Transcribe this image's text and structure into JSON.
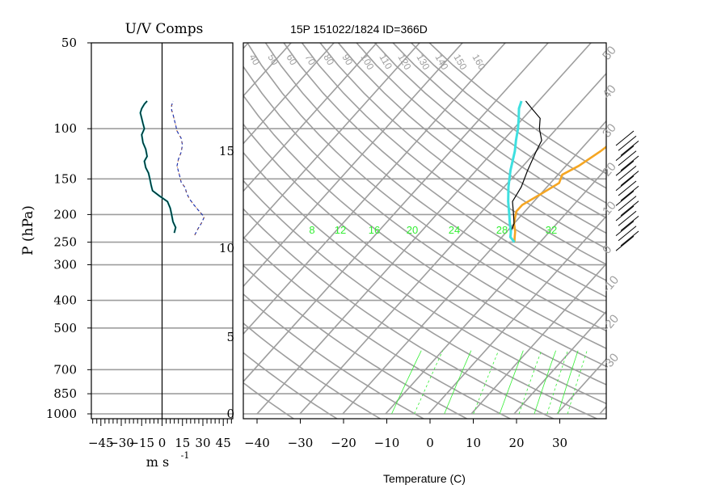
{
  "header": {
    "left_title": "U/V Comps",
    "main_title": "15P 151022/1824 ID=366D"
  },
  "colors": {
    "grid": "#9e9e9e",
    "temperature": "#f5a623",
    "dewpoint": "#000000",
    "parcel": "#3ee0e0",
    "mixing_ratio": "#33ee33",
    "wind_u": "#000000",
    "wind_v": "#00a0a0"
  },
  "chart_data": [
    {
      "type": "line",
      "name": "U/V Comps",
      "title": "U/V Comps",
      "xlabel": "m s",
      "xlabel_superscript": "-1",
      "ylabel": "P (hPa)",
      "xlim": [
        -52,
        52
      ],
      "ylim": [
        1000,
        50
      ],
      "y_scale": "log",
      "x_ticks": [
        -45,
        -30,
        -15,
        0,
        15,
        30,
        45
      ],
      "x_tick_labels": [
        "−45",
        "−30",
        "−15",
        "0",
        "15",
        "30",
        "45"
      ],
      "y_ticks": [
        50,
        100,
        150,
        200,
        250,
        300,
        400,
        500,
        700,
        850,
        1000
      ],
      "y_tick_labels": [
        "50",
        "100",
        "150",
        "200",
        "250",
        "300",
        "400",
        "500",
        "700",
        "850",
        "1000"
      ],
      "series": [
        {
          "style": "wiggly",
          "p": [
            232,
            222,
            212,
            200,
            190,
            180,
            172,
            165,
            158,
            150,
            143,
            137,
            130,
            125,
            118,
            112,
            105,
            100,
            96,
            92,
            88,
            85,
            82,
            80
          ],
          "values": [
            9,
            10,
            8,
            7,
            6,
            4,
            -2,
            -7,
            -8,
            -9,
            -10,
            -12,
            -13,
            -11,
            -12,
            -14,
            -15,
            -13,
            -14,
            -15,
            -16,
            -15,
            -13,
            -11
          ]
        },
        {
          "style": "dashed",
          "p": [
            236,
            226,
            214,
            204,
            194,
            184,
            176,
            168,
            161,
            154,
            147,
            141,
            135,
            128,
            121,
            114,
            108,
            102,
            97,
            93,
            89,
            86,
            83,
            80
          ],
          "values": [
            24,
            26,
            29,
            31,
            27,
            23,
            20,
            18,
            17,
            14,
            13,
            12,
            11,
            12,
            14,
            15,
            14,
            11,
            10,
            9,
            8,
            7,
            7,
            8
          ]
        }
      ]
    },
    {
      "type": "line",
      "name": "skew-T",
      "title": "15P 151022/1824 ID=366D",
      "xlabel": "Temperature (C)",
      "xlim": [
        -40,
        40
      ],
      "ylim": [
        1000,
        50
      ],
      "y_scale": "log",
      "x_ticks": [
        -40,
        -30,
        -20,
        -10,
        0,
        10,
        20,
        30
      ],
      "x_tick_labels": [
        "−40",
        "−30",
        "−20",
        "−10",
        "0",
        "10",
        "20",
        "30"
      ],
      "height_axis_ticks": [
        0,
        5,
        10,
        15
      ],
      "height_axis_tick_labels": [
        "0",
        "5",
        "10",
        "15"
      ],
      "theta_labels": [
        "40",
        "50",
        "60",
        "70",
        "80",
        "90",
        "100",
        "110",
        "120",
        "130",
        "140",
        "150",
        "160"
      ],
      "mixing_ratio_labels": [
        "8",
        "12",
        "16",
        "20",
        "24",
        "28",
        "32"
      ],
      "dry_adiabat_labels_right": [
        "50",
        "40",
        "30",
        "20",
        "10",
        "0",
        "-10",
        "-20",
        "-30"
      ],
      "series": [
        {
          "name": "temperature",
          "p": [
            250,
            240,
            230,
            215,
            205,
            195,
            185,
            170,
            155,
            145,
            135,
            120,
            110,
            100,
            95,
            90,
            85,
            80
          ],
          "values": [
            -16,
            -17,
            -18,
            -20,
            -21,
            -22,
            -22,
            -20,
            -18,
            -19,
            -17,
            -15,
            -14,
            -14,
            -15,
            -19,
            -22,
            -24
          ]
        },
        {
          "name": "dewpoint",
          "p": [
            250,
            240,
            230,
            215,
            200,
            180,
            160,
            140,
            120,
            110,
            100,
            92,
            85,
            80
          ],
          "values": [
            -16,
            -18,
            -19,
            -20,
            -22,
            -25,
            -26,
            -28,
            -30,
            -31,
            -34,
            -36,
            -40,
            -43
          ]
        },
        {
          "name": "parcel",
          "p": [
            250,
            240,
            230,
            215,
            200,
            180,
            160,
            140,
            120,
            110,
            100,
            92,
            85,
            80
          ],
          "values": [
            -16,
            -18,
            -19,
            -21,
            -23,
            -26,
            -29,
            -32,
            -35,
            -37,
            -39,
            -41,
            -43,
            -44
          ]
        }
      ]
    }
  ],
  "footer": {
    "xlabel": "Temperature (C)"
  }
}
